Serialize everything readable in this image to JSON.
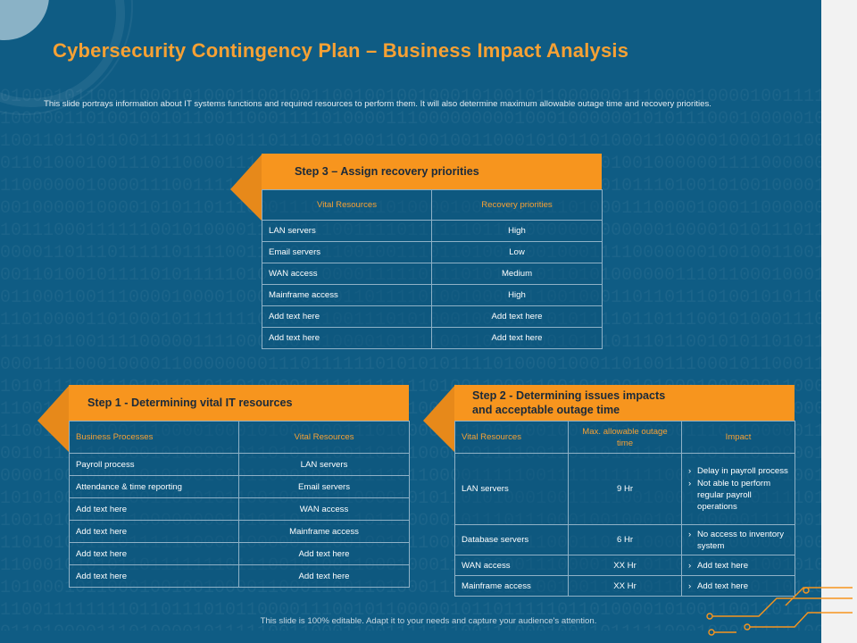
{
  "title": "Cybersecurity Contingency Plan – Business Impact Analysis",
  "subtitle": "This slide portrays information about IT systems functions and required resources to perform them. It will also determine maximum allowable outage time and recovery priorities.",
  "footer": "This slide is 100% editable. Adapt it to your needs and capture your audience's attention.",
  "colors": {
    "background": "#0f5c84",
    "accent": "#f7951e",
    "title": "#f7a134"
  },
  "step3": {
    "heading": "Step 3 – Assign recovery priorities",
    "headers": [
      "Vital Resources",
      "Recovery priorities"
    ],
    "rows": [
      [
        "LAN servers",
        "High"
      ],
      [
        "Email servers",
        "Low"
      ],
      [
        "WAN access",
        "Medium"
      ],
      [
        "Mainframe access",
        "High"
      ],
      [
        "Add text here",
        "Add text here"
      ],
      [
        "Add text here",
        "Add text here"
      ]
    ]
  },
  "step1": {
    "heading": "Step 1 - Determining vital IT resources",
    "headers": [
      "Business Processes",
      "Vital Resources"
    ],
    "rows": [
      [
        "Payroll process",
        "LAN servers"
      ],
      [
        "Attendance & time reporting",
        "Email servers"
      ],
      [
        "Add text here",
        "WAN access"
      ],
      [
        "Add text here",
        "Mainframe access"
      ],
      [
        "Add text here",
        "Add text here"
      ],
      [
        "Add text here",
        "Add text here"
      ]
    ]
  },
  "step2": {
    "heading_line1": "Step 2 - Determining issues impacts",
    "heading_line2": "and acceptable outage time",
    "headers": [
      "Vital Resources",
      "Max. allowable outage time",
      "Impact"
    ],
    "rows": [
      {
        "resource": "LAN servers",
        "time": "9 Hr",
        "impacts": [
          "Delay in payroll process",
          "Not able to perform regular payroll operations"
        ]
      },
      {
        "resource": "Database servers",
        "time": "6 Hr",
        "impacts": [
          "No access to inventory system"
        ]
      },
      {
        "resource": "WAN access",
        "time": "XX Hr",
        "impacts": [
          "Add text here"
        ]
      },
      {
        "resource": "Mainframe access",
        "time": "XX Hr",
        "impacts": [
          "Add text here"
        ]
      }
    ]
  }
}
